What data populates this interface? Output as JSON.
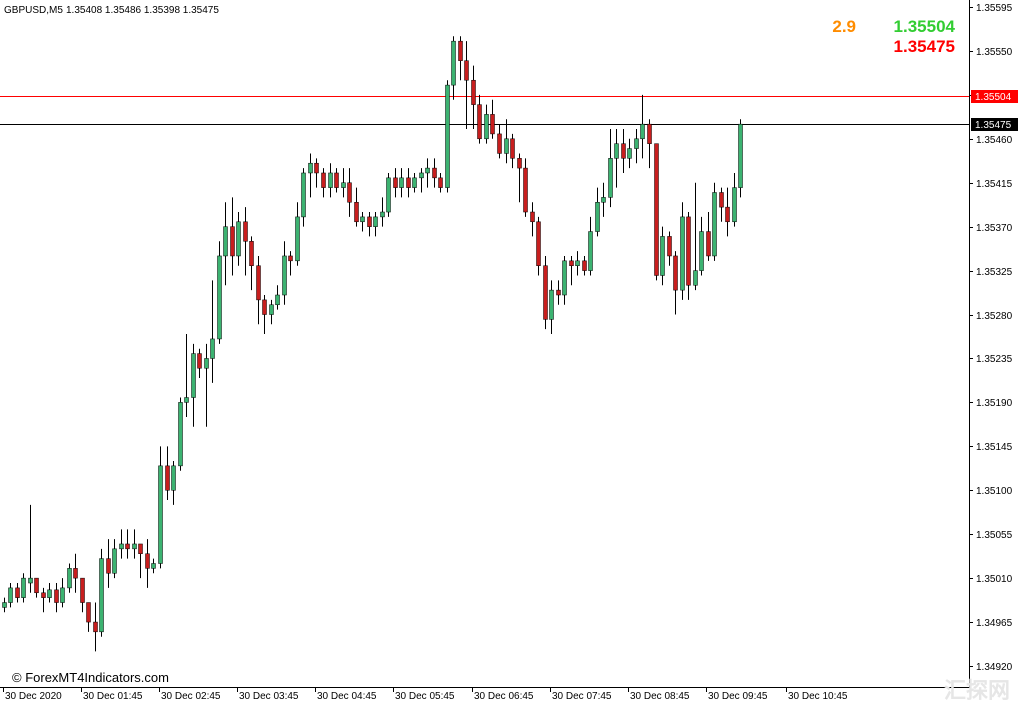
{
  "chart_data": {
    "type": "candlestick",
    "title": "GBPUSD,M5  1.35408 1.35486 1.35398 1.35475",
    "symbol": "GBPUSD,M5",
    "ohlc_header": "1.35408 1.35486 1.35398 1.35475",
    "spread": "2.9",
    "bid_display": "1.35504",
    "ask_display": "1.35475",
    "y_ticks": [
      "1.35595",
      "1.35550",
      "1.35505",
      "1.35460",
      "1.35415",
      "1.35370",
      "1.35325",
      "1.35280",
      "1.35235",
      "1.35190",
      "1.35145",
      "1.35100",
      "1.35055",
      "1.35010",
      "1.34965",
      "1.34920"
    ],
    "x_ticks": [
      "30 Dec 2020",
      "30 Dec 01:45",
      "30 Dec 02:45",
      "30 Dec 03:45",
      "30 Dec 04:45",
      "30 Dec 05:45",
      "30 Dec 06:45",
      "30 Dec 07:45",
      "30 Dec 08:45",
      "30 Dec 09:45",
      "30 Dec 10:45"
    ],
    "price_lines": [
      {
        "label": "1.35504",
        "value": 1.35504,
        "color": "#ff0000"
      },
      {
        "label": "1.35475",
        "value": 1.35475,
        "color": "#000000"
      }
    ],
    "ylim": [
      1.34905,
      1.35605
    ],
    "bull_color": "#3cb371",
    "bear_color": "#c81e1e",
    "candles": [
      [
        1.3498,
        1.3499,
        1.34975,
        1.34985
      ],
      [
        1.34985,
        1.35005,
        1.3498,
        1.35
      ],
      [
        1.35,
        1.35005,
        1.34985,
        1.3499
      ],
      [
        1.3499,
        1.35015,
        1.34985,
        1.3501
      ],
      [
        1.35005,
        1.35085,
        1.34995,
        1.3501
      ],
      [
        1.3501,
        1.3501,
        1.3499,
        1.34995
      ],
      [
        1.34995,
        1.35,
        1.34975,
        1.3499
      ],
      [
        1.3499,
        1.35005,
        1.34985,
        1.34998
      ],
      [
        1.34998,
        1.35005,
        1.34975,
        1.34985
      ],
      [
        1.34985,
        1.3501,
        1.3498,
        1.35
      ],
      [
        1.35,
        1.35025,
        1.34995,
        1.3502
      ],
      [
        1.3502,
        1.35035,
        1.34995,
        1.3501
      ],
      [
        1.3501,
        1.3501,
        1.34975,
        1.34985
      ],
      [
        1.34985,
        1.34985,
        1.34955,
        1.34965
      ],
      [
        1.34965,
        1.34985,
        1.34935,
        1.34955
      ],
      [
        1.34955,
        1.3504,
        1.3495,
        1.3503
      ],
      [
        1.3503,
        1.3505,
        1.35,
        1.35015
      ],
      [
        1.35015,
        1.3505,
        1.3501,
        1.3504
      ],
      [
        1.3504,
        1.3506,
        1.3503,
        1.35045
      ],
      [
        1.35045,
        1.3506,
        1.3503,
        1.3504
      ],
      [
        1.3504,
        1.3506,
        1.3503,
        1.35045
      ],
      [
        1.35045,
        1.35045,
        1.3501,
        1.35035
      ],
      [
        1.35035,
        1.3505,
        1.35,
        1.3502
      ],
      [
        1.3502,
        1.3503,
        1.35015,
        1.35025
      ],
      [
        1.35025,
        1.35145,
        1.3502,
        1.35125
      ],
      [
        1.35125,
        1.35145,
        1.3509,
        1.351
      ],
      [
        1.351,
        1.3513,
        1.35085,
        1.35125
      ],
      [
        1.35125,
        1.35195,
        1.3512,
        1.3519
      ],
      [
        1.3519,
        1.3526,
        1.35175,
        1.35195
      ],
      [
        1.35195,
        1.3525,
        1.35165,
        1.3524
      ],
      [
        1.3524,
        1.35245,
        1.35215,
        1.35225
      ],
      [
        1.35225,
        1.3525,
        1.35165,
        1.35235
      ],
      [
        1.35235,
        1.35315,
        1.3521,
        1.35255
      ],
      [
        1.35255,
        1.35355,
        1.3525,
        1.3534
      ],
      [
        1.3534,
        1.35395,
        1.3531,
        1.3537
      ],
      [
        1.3537,
        1.354,
        1.3532,
        1.3534
      ],
      [
        1.3534,
        1.35385,
        1.3533,
        1.35375
      ],
      [
        1.35375,
        1.3539,
        1.3532,
        1.35355
      ],
      [
        1.35355,
        1.3536,
        1.35305,
        1.3533
      ],
      [
        1.3533,
        1.3534,
        1.3527,
        1.35295
      ],
      [
        1.35295,
        1.353,
        1.3526,
        1.3528
      ],
      [
        1.3528,
        1.35295,
        1.3527,
        1.3529
      ],
      [
        1.3529,
        1.3531,
        1.35285,
        1.353
      ],
      [
        1.353,
        1.35355,
        1.3529,
        1.3534
      ],
      [
        1.3534,
        1.35345,
        1.3532,
        1.35335
      ],
      [
        1.35335,
        1.35395,
        1.3533,
        1.3538
      ],
      [
        1.3538,
        1.3543,
        1.3537,
        1.35425
      ],
      [
        1.35425,
        1.35445,
        1.354,
        1.35435
      ],
      [
        1.35435,
        1.3544,
        1.3541,
        1.35425
      ],
      [
        1.35425,
        1.3543,
        1.354,
        1.3541
      ],
      [
        1.3541,
        1.35435,
        1.354,
        1.35425
      ],
      [
        1.35425,
        1.3543,
        1.35405,
        1.3541
      ],
      [
        1.3541,
        1.3543,
        1.354,
        1.35415
      ],
      [
        1.35415,
        1.3543,
        1.3538,
        1.35395
      ],
      [
        1.35395,
        1.3541,
        1.3537,
        1.35375
      ],
      [
        1.35375,
        1.35385,
        1.35365,
        1.3538
      ],
      [
        1.3538,
        1.35385,
        1.3536,
        1.3537
      ],
      [
        1.3537,
        1.35385,
        1.3536,
        1.3538
      ],
      [
        1.3538,
        1.354,
        1.3537,
        1.35385
      ],
      [
        1.35385,
        1.35425,
        1.3538,
        1.3542
      ],
      [
        1.3542,
        1.3543,
        1.354,
        1.3541
      ],
      [
        1.3541,
        1.3543,
        1.354,
        1.3542
      ],
      [
        1.3542,
        1.3543,
        1.354,
        1.3541
      ],
      [
        1.3541,
        1.35425,
        1.35405,
        1.3542
      ],
      [
        1.3542,
        1.3543,
        1.35405,
        1.35425
      ],
      [
        1.35425,
        1.3544,
        1.3541,
        1.3543
      ],
      [
        1.3543,
        1.3544,
        1.3541,
        1.3542
      ],
      [
        1.3542,
        1.35425,
        1.35405,
        1.3541
      ],
      [
        1.3541,
        1.3552,
        1.35405,
        1.35515
      ],
      [
        1.35515,
        1.35565,
        1.355,
        1.3556
      ],
      [
        1.3556,
        1.35565,
        1.3552,
        1.3554
      ],
      [
        1.3554,
        1.3556,
        1.3547,
        1.3552
      ],
      [
        1.3552,
        1.35535,
        1.3547,
        1.35495
      ],
      [
        1.35495,
        1.35505,
        1.35455,
        1.3546
      ],
      [
        1.3546,
        1.35495,
        1.35455,
        1.35485
      ],
      [
        1.35485,
        1.355,
        1.3546,
        1.35465
      ],
      [
        1.35465,
        1.35475,
        1.3544,
        1.35445
      ],
      [
        1.35445,
        1.3548,
        1.35435,
        1.3546
      ],
      [
        1.3546,
        1.35465,
        1.3543,
        1.3544
      ],
      [
        1.3544,
        1.35445,
        1.35395,
        1.3543
      ],
      [
        1.3543,
        1.3544,
        1.3538,
        1.35385
      ],
      [
        1.35385,
        1.35395,
        1.3536,
        1.35375
      ],
      [
        1.35375,
        1.3538,
        1.3532,
        1.3533
      ],
      [
        1.3533,
        1.3534,
        1.35265,
        1.35275
      ],
      [
        1.35275,
        1.35315,
        1.3526,
        1.35305
      ],
      [
        1.35305,
        1.35315,
        1.3529,
        1.353
      ],
      [
        1.353,
        1.3534,
        1.3529,
        1.35335
      ],
      [
        1.35335,
        1.3534,
        1.3531,
        1.3533
      ],
      [
        1.3533,
        1.35345,
        1.3532,
        1.35335
      ],
      [
        1.35335,
        1.3534,
        1.3532,
        1.35325
      ],
      [
        1.35325,
        1.3538,
        1.3532,
        1.35365
      ],
      [
        1.35365,
        1.3541,
        1.3536,
        1.35395
      ],
      [
        1.35395,
        1.35415,
        1.3538,
        1.354
      ],
      [
        1.354,
        1.3547,
        1.3539,
        1.3544
      ],
      [
        1.3544,
        1.3547,
        1.3541,
        1.35455
      ],
      [
        1.35455,
        1.3547,
        1.35425,
        1.3544
      ],
      [
        1.3544,
        1.3546,
        1.3543,
        1.3545
      ],
      [
        1.3545,
        1.3547,
        1.35435,
        1.3546
      ],
      [
        1.3546,
        1.35505,
        1.3544,
        1.35475
      ],
      [
        1.35475,
        1.3548,
        1.3543,
        1.35455
      ],
      [
        1.35455,
        1.35455,
        1.35315,
        1.3532
      ],
      [
        1.3532,
        1.3537,
        1.3531,
        1.3536
      ],
      [
        1.3536,
        1.35365,
        1.3533,
        1.3534
      ],
      [
        1.3534,
        1.35345,
        1.3528,
        1.35305
      ],
      [
        1.35305,
        1.35395,
        1.35295,
        1.3538
      ],
      [
        1.3538,
        1.35385,
        1.35295,
        1.3531
      ],
      [
        1.3531,
        1.35415,
        1.35305,
        1.35325
      ],
      [
        1.35325,
        1.3538,
        1.3532,
        1.35365
      ],
      [
        1.35365,
        1.35385,
        1.35335,
        1.3534
      ],
      [
        1.3534,
        1.35415,
        1.35335,
        1.35405
      ],
      [
        1.35405,
        1.3541,
        1.35375,
        1.3539
      ],
      [
        1.3539,
        1.3541,
        1.3536,
        1.35375
      ],
      [
        1.35375,
        1.35425,
        1.3537,
        1.3541
      ],
      [
        1.3541,
        1.3548,
        1.354,
        1.35475
      ]
    ]
  },
  "watermark": {
    "copyright": "© ForexMT4Indicators.com",
    "corner_logo": "汇探网"
  }
}
